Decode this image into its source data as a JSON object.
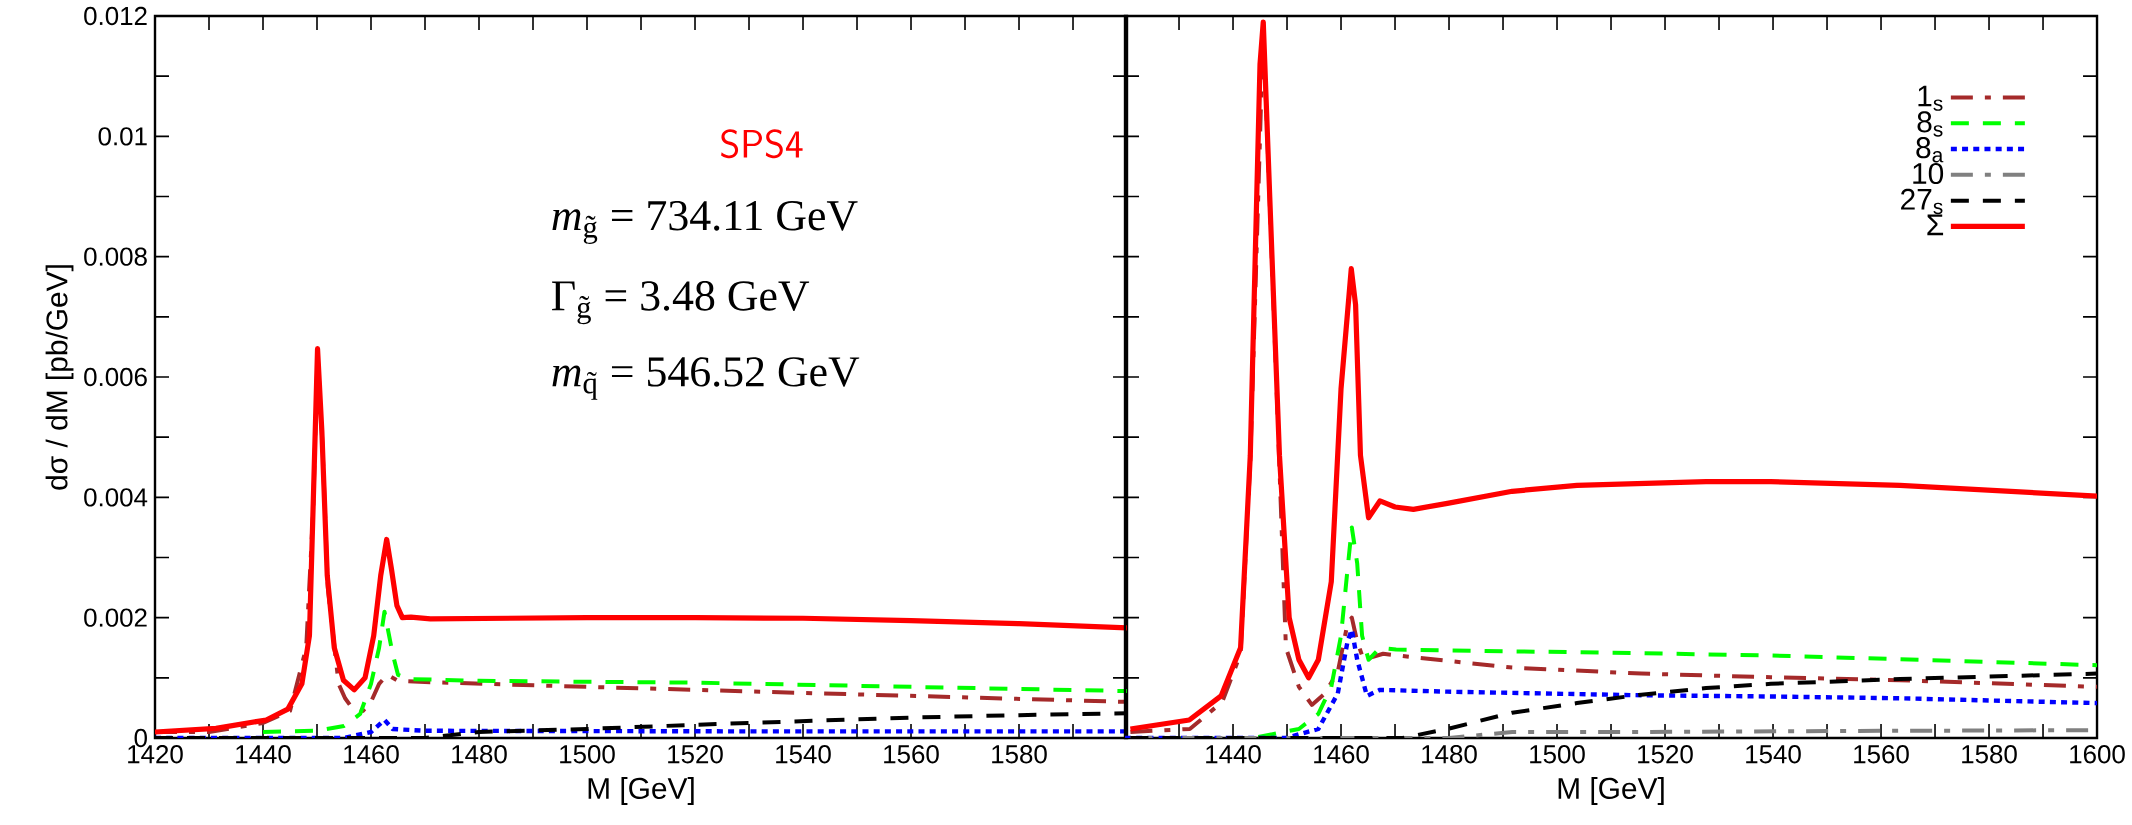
{
  "chart_data": [
    {
      "type": "line",
      "xlabel": "M [GeV]",
      "ylabel": "dσ / dM [pb/GeV]",
      "annotations": [
        "SPS4",
        "*m*$_{g̃}$ = 734.11 GeV",
        "Γ$_{g̃}$ = 3.48 GeV",
        "*m*$_{q̃}$ = 546.52 GeV"
      ],
      "xlim": [
        1420,
        1600
      ],
      "ylim": [
        0,
        0.012
      ],
      "xticks": [
        1420,
        {
          "value": 1430,
          "label": null
        },
        1440,
        {
          "value": 1450,
          "label": null
        },
        1460,
        {
          "value": 1470,
          "label": null
        },
        1480,
        {
          "value": 1490,
          "label": null
        },
        1500,
        {
          "value": 1510,
          "label": null
        },
        1520,
        {
          "value": 1530,
          "label": null
        },
        1540,
        {
          "value": 1550,
          "label": null
        },
        1560,
        {
          "value": 1570,
          "label": null
        },
        1580,
        {
          "value": 1590,
          "label": null
        },
        {
          "value": 1600,
          "label": null
        }
      ],
      "yticks": [
        0,
        {
          "value": 0.001,
          "label": null
        },
        0.002,
        {
          "value": 0.003,
          "label": null
        },
        0.004,
        {
          "value": 0.005,
          "label": null
        },
        0.006,
        {
          "value": 0.007,
          "label": null
        },
        0.008,
        {
          "value": 0.009,
          "label": null
        },
        0.01,
        {
          "value": 0.011,
          "label": null
        },
        0.012
      ],
      "series": [
        {
          "color": "#a52a2a",
          "line_style": "dashdot",
          "x": [
            1420,
            1430,
            1440,
            1445,
            1448,
            1449.3,
            1450.1,
            1451,
            1452,
            1454,
            1455.2,
            1456.5,
            1458.5,
            1460,
            1461.5,
            1463,
            1465,
            1470,
            1500,
            1540,
            1580,
            1600
          ],
          "values": [
            0.0001,
            0.0001,
            0.00025,
            0.00045,
            0.0015,
            0.0038,
            0.0064,
            0.0049,
            0.0025,
            0.0009,
            0.00066,
            0.0005,
            0.00045,
            0.0006,
            0.0009,
            0.00105,
            0.00095,
            0.00093,
            0.00085,
            0.00075,
            0.00065,
            0.0006
          ]
        },
        {
          "color": "#00ff00",
          "line_style": "dashed",
          "x": [
            1440,
            1450,
            1455,
            1458,
            1460,
            1461.5,
            1462.5,
            1464,
            1465,
            1467,
            1480,
            1520,
            1560,
            1600
          ],
          "values": [
            0.0001,
            0.00012,
            0.0002,
            0.0004,
            0.0009,
            0.0015,
            0.0021,
            0.0014,
            0.00105,
            0.00098,
            0.00095,
            0.00092,
            0.00085,
            0.00078
          ]
        },
        {
          "color": "#0000ff",
          "line_style": "dotted",
          "x": [
            1420,
            1455,
            1460,
            1462.5,
            1464,
            1470,
            1530,
            1600
          ],
          "values": [
            0,
            0,
            0.0001,
            0.0003,
            0.00015,
            0.00012,
            0.00011,
            0.00011
          ]
        },
        {
          "color": "#000000",
          "line_style": "dashed",
          "x": [
            1420,
            1460,
            1470,
            1480,
            1500,
            1520,
            1540,
            1560,
            1580,
            1600
          ],
          "values": [
            0,
            0,
            0,
            0.0001,
            0.00015,
            0.00022,
            0.00028,
            0.00034,
            0.00038,
            0.00041
          ]
        },
        {
          "color": "#ff0000",
          "line_style": "solid",
          "x": [
            1420,
            1431.3,
            1440.6,
            1444.6,
            1447.2,
            1448.6,
            1449.3,
            1450.1,
            1450.9,
            1451.9,
            1453.2,
            1454.9,
            1456.9,
            1458.9,
            1460.5,
            1461.8,
            1462.9,
            1463.8,
            1464.8,
            1465.8,
            1467.4,
            1471,
            1500,
            1520,
            1540,
            1560,
            1580,
            1600
          ],
          "values": [
            0.0001,
            0.00016,
            0.0003,
            0.00048,
            0.0009,
            0.0017,
            0.0039,
            0.00647,
            0.0051,
            0.0027,
            0.0015,
            0.00096,
            0.0008,
            0.001,
            0.0017,
            0.0027,
            0.0033,
            0.0028,
            0.0022,
            0.002,
            0.00201,
            0.00198,
            0.002,
            0.002,
            0.00199,
            0.00195,
            0.0019,
            0.00183
          ]
        }
      ]
    },
    {
      "type": "line",
      "xlabel": "M [GeV]",
      "legend": "top right",
      "tick_labels": "x",
      "xlim": [
        1420,
        1600
      ],
      "ylim": [
        0,
        0.012
      ],
      "xticks": [
        {
          "value": 1420,
          "label": null
        },
        {
          "value": 1430,
          "label": null
        },
        1440,
        {
          "value": 1450,
          "label": null
        },
        1460,
        {
          "value": 1470,
          "label": null
        },
        1480,
        {
          "value": 1490,
          "label": null
        },
        1500,
        {
          "value": 1510,
          "label": null
        },
        1520,
        {
          "value": 1530,
          "label": null
        },
        1540,
        {
          "value": 1550,
          "label": null
        },
        1560,
        {
          "value": 1570,
          "label": null
        },
        1580,
        {
          "value": 1590,
          "label": null
        },
        1600
      ],
      "yticks": [
        0,
        0.001,
        0.002,
        0.003,
        0.004,
        0.005,
        0.006,
        0.007,
        0.008,
        0.009,
        0.01,
        0.011,
        0.012
      ],
      "series": [
        {
          "name": "1$_{s}$",
          "color": "#a52a2a",
          "line_style": "dashdot",
          "x": [
            1421,
            1432,
            1438,
            1441.4,
            1443.2,
            1445.6,
            1446.8,
            1448.6,
            1449.8,
            1452.2,
            1454.6,
            1457,
            1459.4,
            1461.2,
            1462,
            1463,
            1464.2,
            1467.8,
            1473.7,
            1491.7,
            1515.6,
            1539.6,
            1563.5,
            1600
          ],
          "values": [
            0.0001,
            0.00015,
            0.0006,
            0.0014,
            0.0046,
            0.0118,
            0.0089,
            0.0045,
            0.0015,
            0.00085,
            0.00055,
            0.00074,
            0.0011,
            0.0019,
            0.002,
            0.0016,
            0.0013,
            0.0014,
            0.00134,
            0.00117,
            0.00107,
            0.00101,
            0.00096,
            0.00085
          ]
        },
        {
          "name": "8$_{s}$",
          "color": "#00ff00",
          "line_style": "dashed",
          "x": [
            1421,
            1443.8,
            1452.2,
            1455.8,
            1458.2,
            1460,
            1461.2,
            1462,
            1463,
            1463.9,
            1465.1,
            1467.2,
            1470.2,
            1491.7,
            1515.6,
            1539.6,
            1563.5,
            1600
          ],
          "values": [
            0,
            0,
            0.00015,
            0.0004,
            0.00085,
            0.0017,
            0.0028,
            0.0035,
            0.0029,
            0.0017,
            0.0013,
            0.0015,
            0.00147,
            0.00144,
            0.00141,
            0.00137,
            0.00131,
            0.00121
          ]
        },
        {
          "name": "8$_{a}$",
          "color": "#0000ff",
          "line_style": "dotted",
          "x": [
            1420,
            1449.8,
            1455.8,
            1459.4,
            1461.2,
            1462,
            1463,
            1464.8,
            1467.2,
            1479.7,
            1515.6,
            1539.6,
            1563.5,
            1600
          ],
          "values": [
            0,
            0,
            0.00015,
            0.00074,
            0.0016,
            0.0018,
            0.0013,
            0.0007,
            0.0008,
            0.00077,
            0.00071,
            0.00069,
            0.00066,
            0.00058
          ]
        },
        {
          "name": "10",
          "color": "#808080",
          "line_style": "dashdot",
          "x": [
            1421,
            1480,
            1491.7,
            1515.6,
            1563.5,
            1600
          ],
          "values": [
            0,
            0,
            0.0001,
            0.0001,
            0.00012,
            0.00013
          ]
        },
        {
          "name": "27$_{s}$",
          "color": "#000000",
          "line_style": "dashed",
          "x": [
            1421,
            1460,
            1471.4,
            1479.7,
            1491.7,
            1503.7,
            1515.6,
            1527.6,
            1539.6,
            1563.5,
            1600
          ],
          "values": [
            0,
            0,
            0,
            0.00015,
            0.00042,
            0.00058,
            0.00072,
            0.00083,
            0.0009,
            0.00098,
            0.00107
          ]
        },
        {
          "name": "Σ",
          "color": "#ff0000",
          "line_style": "solid",
          "x": [
            1421,
            1431.9,
            1437.8,
            1441.4,
            1443.2,
            1445,
            1445.6,
            1446.8,
            1448.6,
            1450.4,
            1452.2,
            1454,
            1455.8,
            1458.2,
            1460,
            1461.9,
            1462.7,
            1463.6,
            1465.1,
            1467.2,
            1470,
            1473.4,
            1479.7,
            1491.7,
            1503.7,
            1527.6,
            1539.6,
            1563.5,
            1600
          ],
          "values": [
            0.00015,
            0.0003,
            0.0007,
            0.0015,
            0.0047,
            0.0112,
            0.0119,
            0.009,
            0.0047,
            0.002,
            0.0013,
            0.001,
            0.0013,
            0.0026,
            0.0058,
            0.0078,
            0.0072,
            0.0047,
            0.00366,
            0.00394,
            0.00384,
            0.0038,
            0.0039,
            0.0041,
            0.0042,
            0.00426,
            0.00426,
            0.0042,
            0.00402
          ]
        }
      ]
    }
  ]
}
